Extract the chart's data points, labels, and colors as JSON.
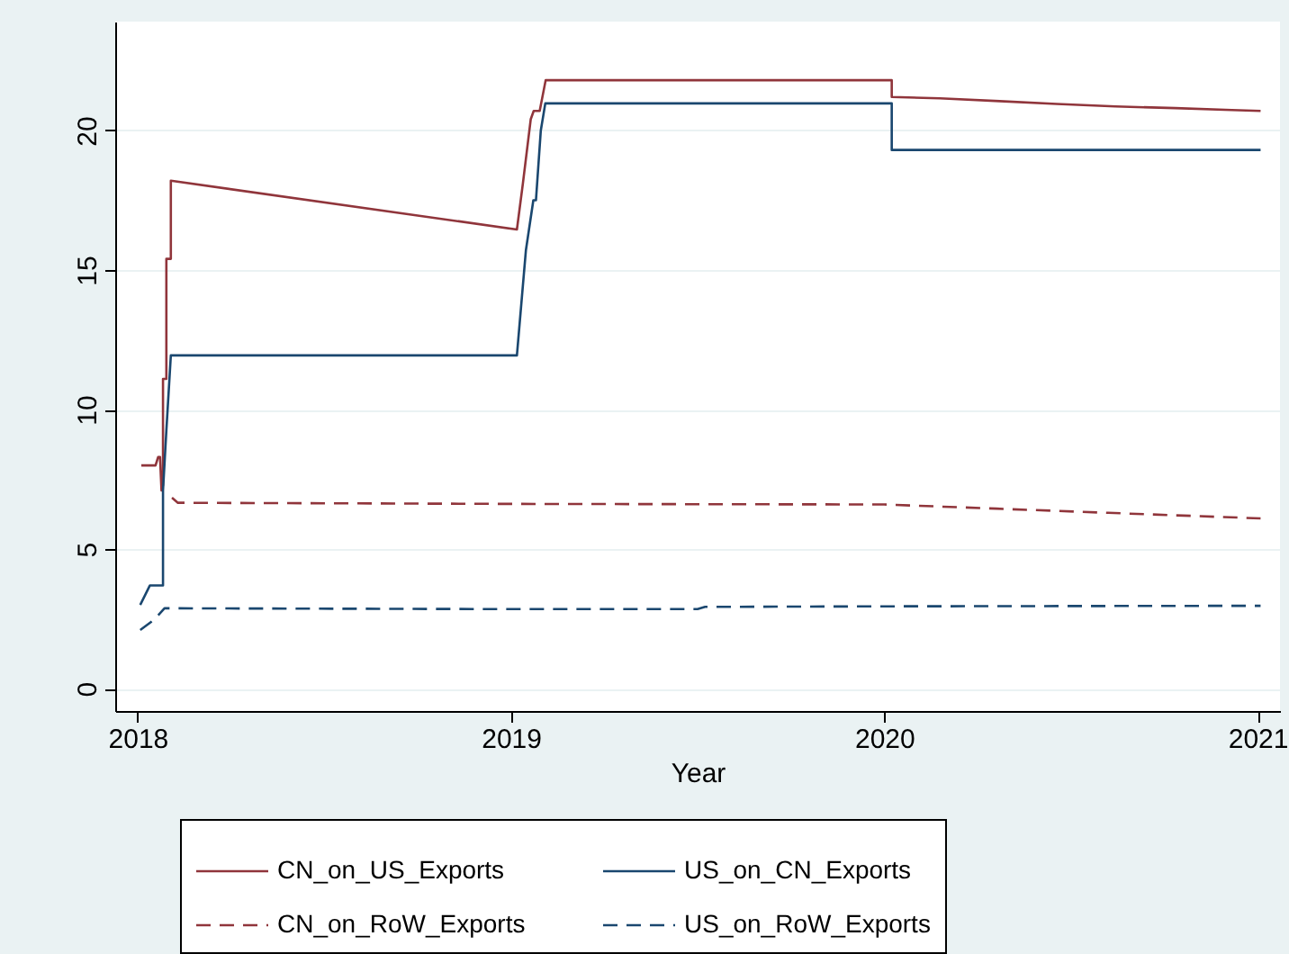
{
  "chart_data": {
    "type": "line",
    "xlabel": "Year",
    "xlim": [
      2017.94,
      2021.06
    ],
    "xticks": [
      2018,
      2019,
      2020,
      2021
    ],
    "ylim": [
      -0.8,
      23.9
    ],
    "yticks": [
      0,
      5,
      10,
      15,
      20
    ],
    "grid": "y",
    "legend": "bottom",
    "series": [
      {
        "name": "CN_on_US_Exports",
        "color": "#90353b",
        "line_style": "solid",
        "x": [
          2018.01,
          2018.048,
          2018.055,
          2018.06,
          2018.064,
          2018.068,
          2018.068,
          2018.077,
          2018.077,
          2018.089,
          2018.089,
          2019.016,
          2019.032,
          2019.053,
          2019.061,
          2019.077,
          2019.093,
          2020.02,
          2020.02,
          2020.149,
          2020.309,
          2020.462,
          2020.619,
          2020.78,
          2020.931,
          2021.008
        ],
        "values": [
          8.0,
          8.0,
          8.3,
          8.3,
          7.1,
          7.3,
          11.1,
          11.1,
          15.4,
          15.4,
          18.2,
          16.45,
          18.1,
          20.4,
          20.7,
          20.7,
          21.8,
          21.8,
          21.2,
          21.15,
          21.05,
          20.95,
          20.86,
          20.8,
          20.73,
          20.7
        ]
      },
      {
        "name": "US_on_CN_Exports",
        "color": "#1a476f",
        "line_style": "solid",
        "x": [
          2018.007,
          2018.033,
          2018.068,
          2018.068,
          2018.077,
          2018.089,
          2019.016,
          2019.04,
          2019.06,
          2019.067,
          2019.08,
          2019.092,
          2020.02,
          2020.02,
          2021.008
        ],
        "values": [
          3.0,
          3.7,
          3.7,
          7.1,
          9.25,
          11.94,
          11.94,
          15.7,
          17.5,
          17.5,
          20.0,
          20.97,
          20.97,
          19.3,
          19.3
        ]
      },
      {
        "name": "CN_on_RoW_Exports",
        "color": "#90353b",
        "line_style": "dashed",
        "x": [
          2018.092,
          2018.108,
          2019.0,
          2020.0,
          2020.3,
          2020.6,
          2021.008
        ],
        "values": [
          6.84,
          6.66,
          6.62,
          6.6,
          6.45,
          6.3,
          6.1
        ]
      },
      {
        "name": "US_on_RoW_Exports",
        "color": "#1a476f",
        "line_style": "dashed",
        "x": [
          2018.007,
          2018.044,
          2018.072,
          2019.0,
          2019.5,
          2019.52,
          2020.0,
          2021.008
        ],
        "values": [
          2.1,
          2.47,
          2.88,
          2.85,
          2.85,
          2.93,
          2.95,
          2.97
        ]
      }
    ]
  }
}
